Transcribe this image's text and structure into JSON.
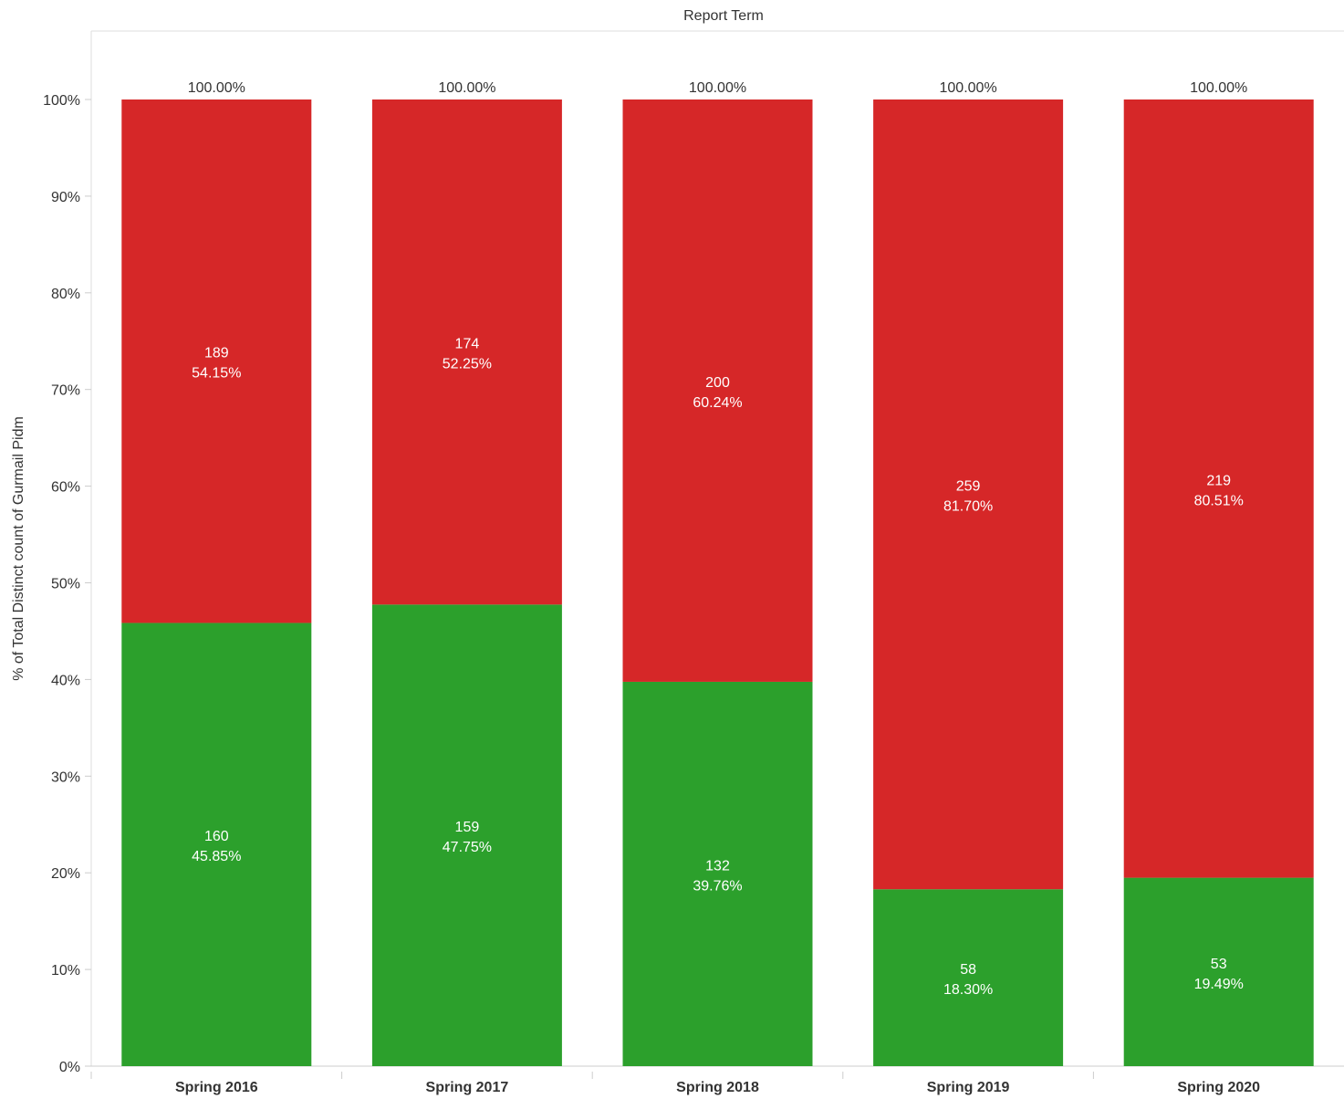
{
  "chart_data": {
    "type": "bar",
    "stacked": true,
    "normalized": true,
    "column_header": "Report Term",
    "ylabel": "% of Total Distinct count of Gurmail Pidm",
    "xlabel": "",
    "ylim": [
      0,
      1
    ],
    "y_ticks": [
      {
        "value": 0,
        "label": "0%"
      },
      {
        "value": 0.1,
        "label": "10%"
      },
      {
        "value": 0.2,
        "label": "20%"
      },
      {
        "value": 0.3,
        "label": "30%"
      },
      {
        "value": 0.4,
        "label": "40%"
      },
      {
        "value": 0.5,
        "label": "50%"
      },
      {
        "value": 0.6,
        "label": "60%"
      },
      {
        "value": 0.7,
        "label": "70%"
      },
      {
        "value": 0.8,
        "label": "80%"
      },
      {
        "value": 0.9,
        "label": "90%"
      },
      {
        "value": 1.0,
        "label": "100%"
      }
    ],
    "categories": [
      "Spring 2016",
      "Spring 2017",
      "Spring 2018",
      "Spring 2019",
      "Spring 2020"
    ],
    "totals": [
      "100.00%",
      "100.00%",
      "100.00%",
      "100.00%",
      "100.00%"
    ],
    "series": [
      {
        "color": "#2ca02c",
        "values": [
          0.4585,
          0.4775,
          0.3976,
          0.183,
          0.1949
        ],
        "counts": [
          "160",
          "159",
          "132",
          "58",
          "53"
        ],
        "percents": [
          "45.85%",
          "47.75%",
          "39.76%",
          "18.30%",
          "19.49%"
        ]
      },
      {
        "color": "#d62728",
        "values": [
          0.5415,
          0.5225,
          0.6024,
          0.817,
          0.8051
        ],
        "counts": [
          "189",
          "174",
          "200",
          "259",
          "219"
        ],
        "percents": [
          "54.15%",
          "52.25%",
          "60.24%",
          "81.70%",
          "80.51%"
        ]
      }
    ],
    "grid": false,
    "legend": "none"
  }
}
